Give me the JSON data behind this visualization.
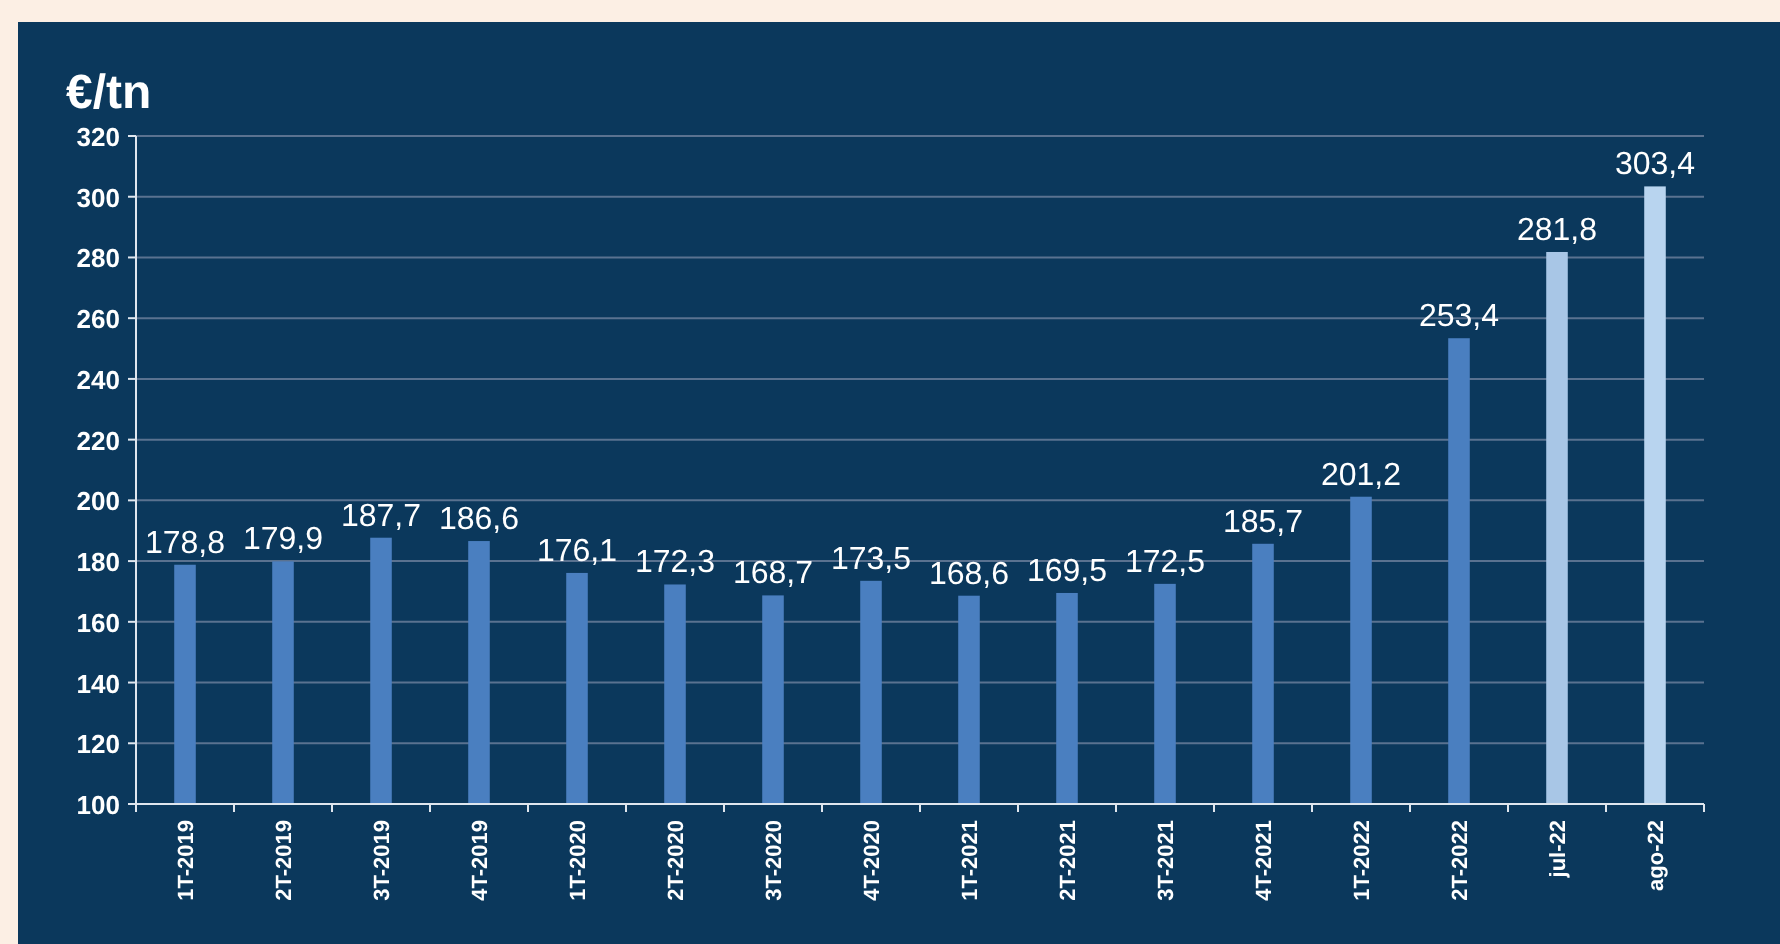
{
  "chart_data": {
    "type": "bar",
    "ylabel": "€/tn",
    "categories": [
      "1T-2019",
      "2T-2019",
      "3T-2019",
      "4T-2019",
      "1T-2020",
      "2T-2020",
      "3T-2020",
      "4T-2020",
      "1T-2021",
      "2T-2021",
      "3T-2021",
      "4T-2021",
      "1T-2022",
      "2T-2022",
      "jul-22",
      "ago-22"
    ],
    "values": [
      178.8,
      179.9,
      187.7,
      186.6,
      176.1,
      172.3,
      168.7,
      173.5,
      168.6,
      169.5,
      172.5,
      185.7,
      201.2,
      253.4,
      281.8,
      303.4
    ],
    "colors": [
      "#4a7fc0",
      "#4a7fc0",
      "#4a7fc0",
      "#4a7fc0",
      "#4a7fc0",
      "#4a7fc0",
      "#4a7fc0",
      "#4a7fc0",
      "#4a7fc0",
      "#4a7fc0",
      "#4a7fc0",
      "#4a7fc0",
      "#4a7fc0",
      "#4a7fc0",
      "#a8c6e6",
      "#b8d4ef"
    ],
    "value_labels": [
      "178,8",
      "179,9",
      "187,7",
      "186,6",
      "176,1",
      "172,3",
      "168,7",
      "173,5",
      "168,6",
      "169,5",
      "172,5",
      "185,7",
      "201,2",
      "253,4",
      "281,8",
      "303,4"
    ],
    "ylim": [
      100,
      320
    ],
    "yticks": [
      100,
      120,
      140,
      160,
      180,
      200,
      220,
      240,
      260,
      280,
      300,
      320
    ],
    "grid": "y"
  }
}
